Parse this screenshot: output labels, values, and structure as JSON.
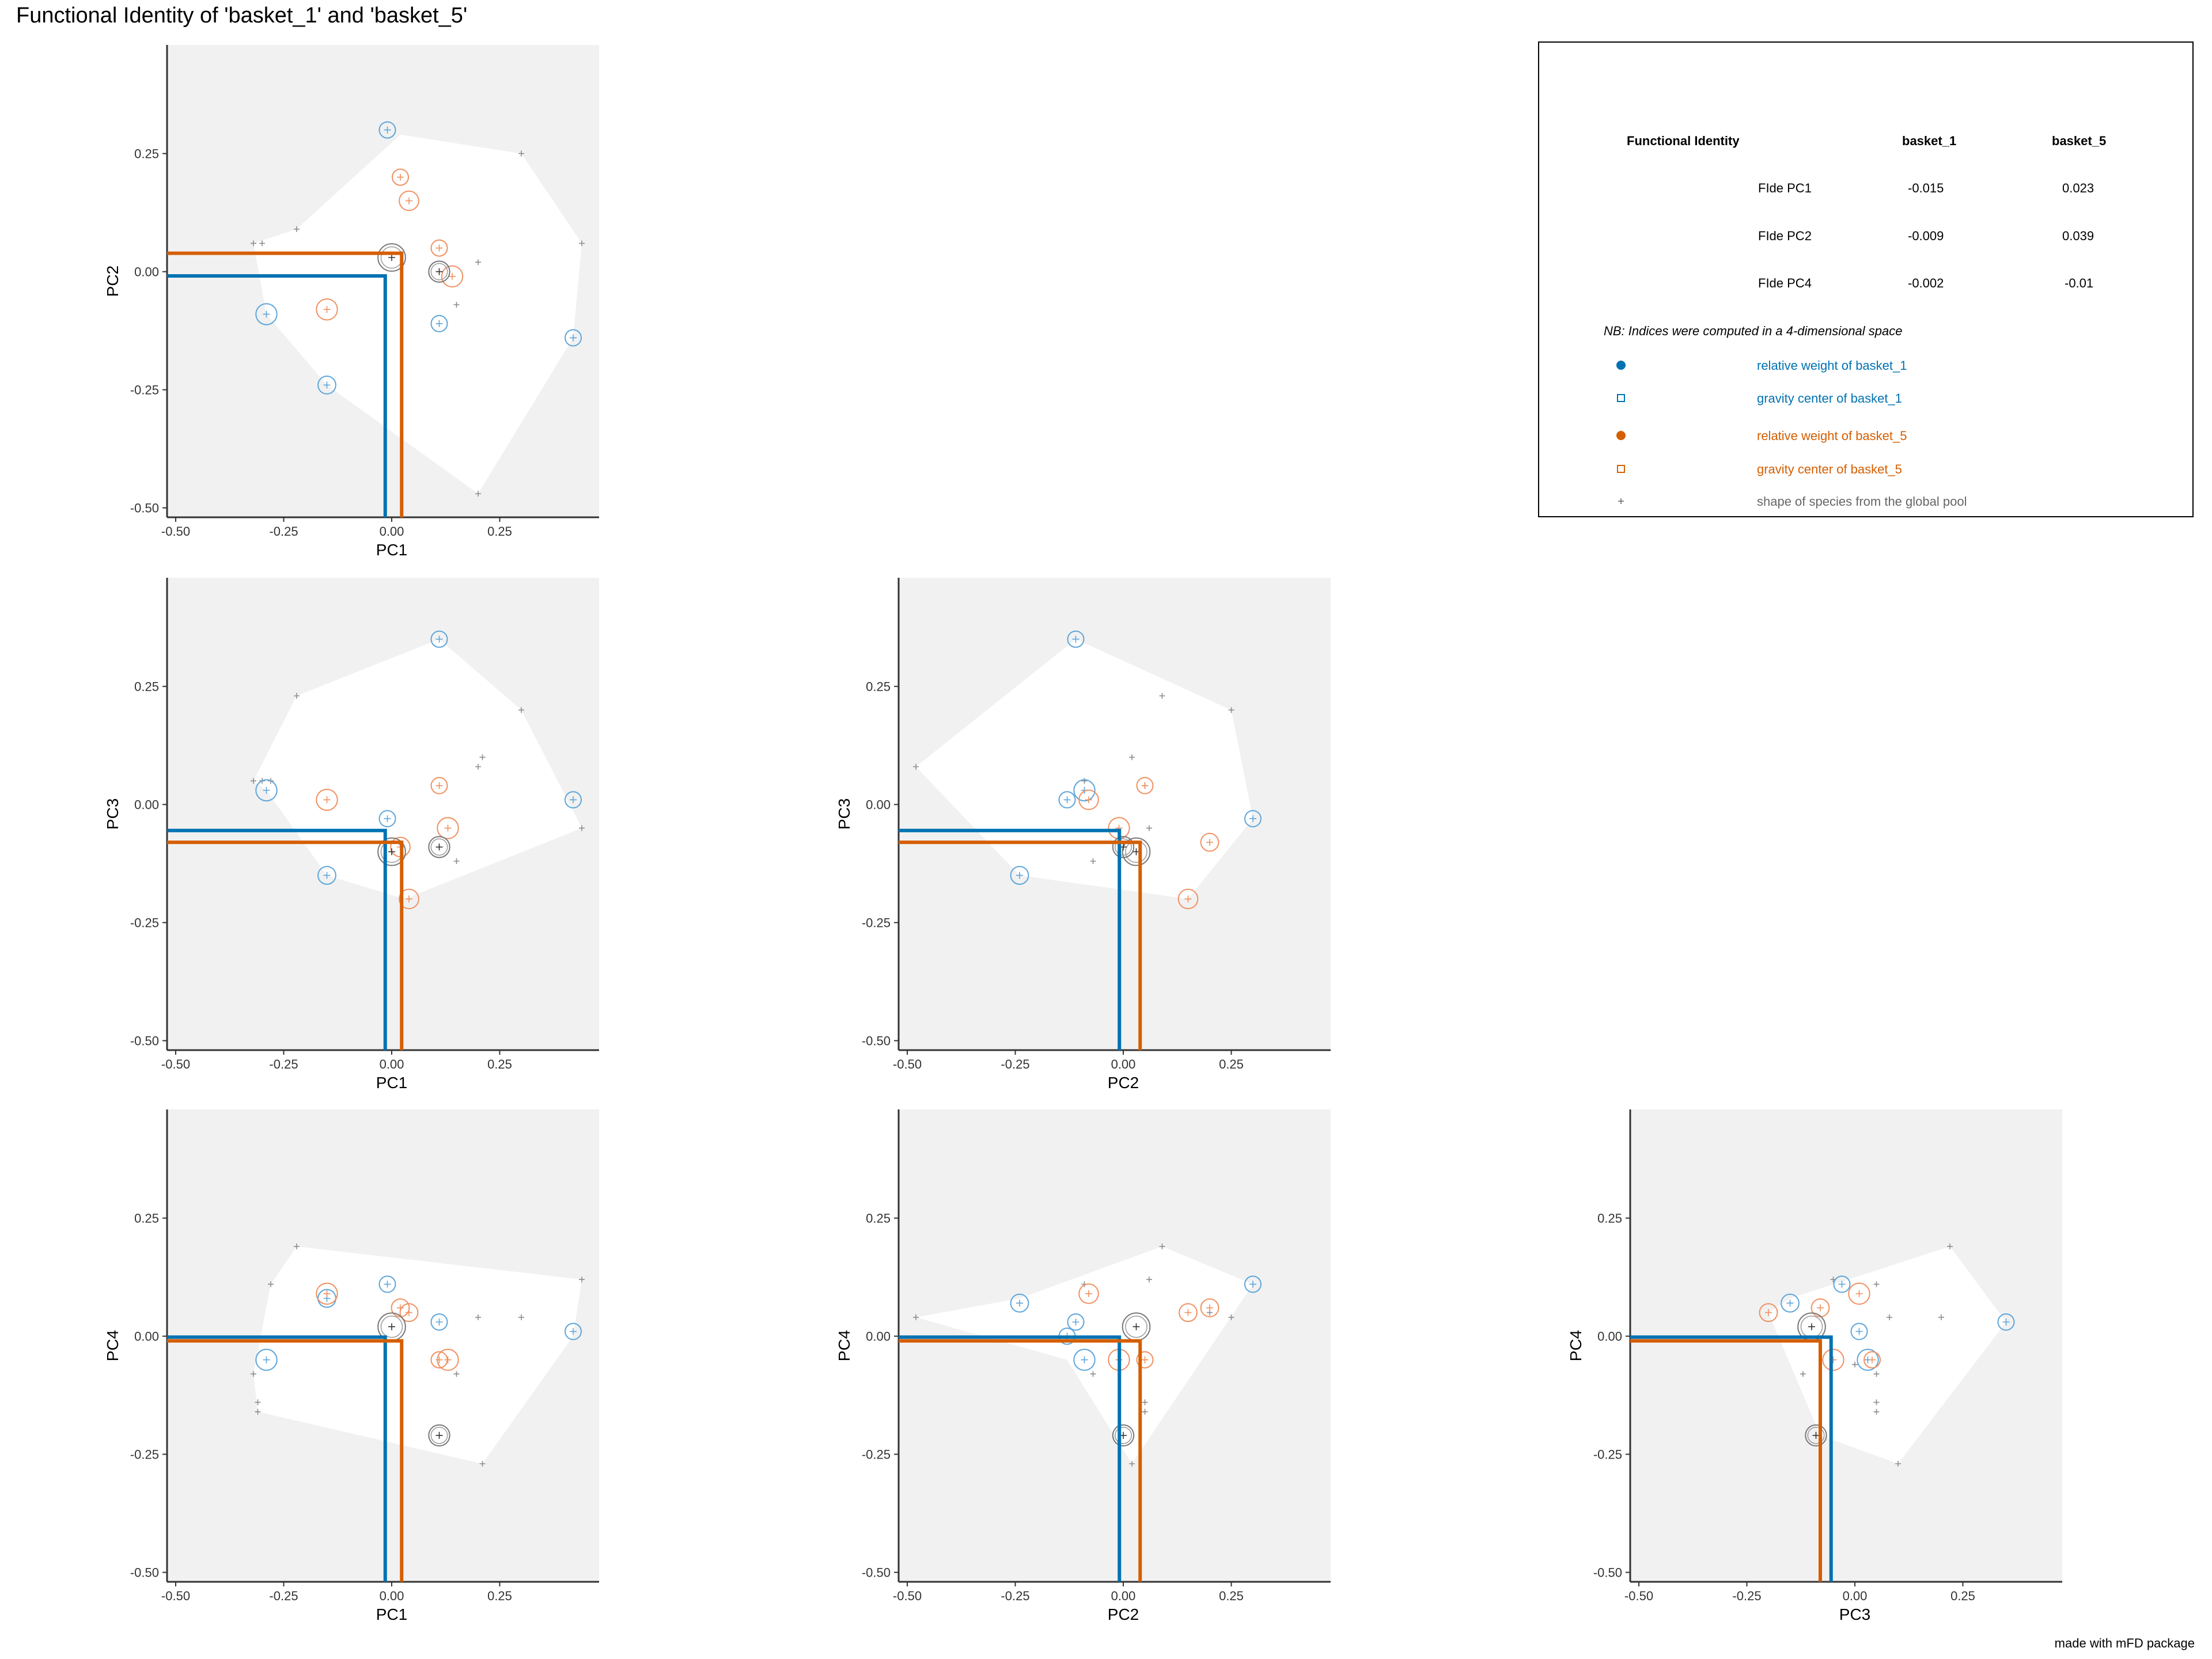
{
  "title": "Functional Identity of 'basket_1' and 'basket_5'",
  "credit": "made with mFD package",
  "colors": {
    "basket_1": "#0072B2",
    "basket_1_light": "#5DA5DA",
    "basket_5": "#D55E00",
    "basket_5_light": "#F09060",
    "pool": "#8C8C8C",
    "common": "#333333",
    "panel_bg": "#F1F1F1",
    "hull": "#FFFFFF"
  },
  "legend": {
    "header": [
      "Functional Identity",
      "basket_1",
      "basket_5"
    ],
    "rows": [
      {
        "label": "FIde PC1",
        "basket_1": "-0.015",
        "basket_5": "0.023"
      },
      {
        "label": "FIde PC2",
        "basket_1": "-0.009",
        "basket_5": "0.039"
      },
      {
        "label": "FIde PC4",
        "basket_1": "-0.002",
        "basket_5": "-0.01"
      }
    ],
    "note": "NB: Indices were computed in a 4-dimensional space",
    "items": [
      {
        "label": "relative weight of basket_1",
        "symbol": "filled-circle",
        "color": "#0072B2"
      },
      {
        "label": "gravity center of basket_1",
        "symbol": "open-square",
        "color": "#0072B2"
      },
      {
        "label": "relative weight of basket_5",
        "symbol": "filled-circle",
        "color": "#D55E00"
      },
      {
        "label": "gravity center of basket_5",
        "symbol": "open-square",
        "color": "#D55E00"
      },
      {
        "label": "shape of species from the global pool",
        "symbol": "cross",
        "color": "#666666"
      }
    ]
  },
  "chart_data": [
    {
      "type": "scatter",
      "xlabel": "PC1",
      "ylabel": "PC2",
      "xlim": [
        -0.52,
        0.48
      ],
      "ylim": [
        -0.52,
        0.48
      ],
      "xticks": [
        "-0.50",
        "-0.25",
        "0.00",
        "0.25"
      ],
      "yticks": [
        "-0.50",
        "-0.25",
        "0.00",
        "0.25"
      ],
      "hull": [
        [
          -0.32,
          0.06
        ],
        [
          -0.22,
          0.09
        ],
        [
          0.02,
          0.29
        ],
        [
          0.3,
          0.25
        ],
        [
          0.44,
          0.06
        ],
        [
          0.42,
          -0.14
        ],
        [
          0.2,
          -0.47
        ],
        [
          -0.15,
          -0.24
        ],
        [
          -0.29,
          -0.09
        ]
      ],
      "pool": [
        [
          -0.32,
          0.06
        ],
        [
          -0.3,
          0.06
        ],
        [
          -0.22,
          0.09
        ],
        [
          0.3,
          0.25
        ],
        [
          0.44,
          0.06
        ],
        [
          0.2,
          0.02
        ],
        [
          0.15,
          -0.07
        ],
        [
          0.2,
          -0.47
        ]
      ],
      "basket_1": [
        {
          "x": -0.01,
          "y": 0.3,
          "r": 1
        },
        {
          "x": -0.29,
          "y": -0.09,
          "r": 1.3
        },
        {
          "x": -0.15,
          "y": -0.24,
          "r": 1.1
        },
        {
          "x": 0.11,
          "y": -0.11,
          "r": 1
        },
        {
          "x": 0.42,
          "y": -0.14,
          "r": 1
        }
      ],
      "basket_5": [
        {
          "x": 0.02,
          "y": 0.2,
          "r": 1
        },
        {
          "x": 0.04,
          "y": 0.15,
          "r": 1.2
        },
        {
          "x": 0.11,
          "y": 0.05,
          "r": 1
        },
        {
          "x": 0.14,
          "y": -0.01,
          "r": 1.3
        },
        {
          "x": -0.15,
          "y": -0.08,
          "r": 1.3
        }
      ],
      "common": [
        {
          "x": 0.0,
          "y": 0.03,
          "r": 1.7
        },
        {
          "x": 0.11,
          "y": 0.0,
          "r": 1.3
        }
      ],
      "fide_b1": [
        -0.015,
        -0.009
      ],
      "fide_b5": [
        0.023,
        0.039
      ]
    },
    {
      "type": "scatter",
      "xlabel": "PC1",
      "ylabel": "PC3",
      "xlim": [
        -0.52,
        0.48
      ],
      "ylim": [
        -0.52,
        0.48
      ],
      "xticks": [
        "-0.50",
        "-0.25",
        "0.00",
        "0.25"
      ],
      "yticks": [
        "-0.50",
        "-0.25",
        "0.00",
        "0.25"
      ],
      "hull": [
        [
          -0.32,
          0.05
        ],
        [
          -0.22,
          0.23
        ],
        [
          0.11,
          0.35
        ],
        [
          0.3,
          0.2
        ],
        [
          0.44,
          -0.05
        ],
        [
          0.03,
          -0.2
        ],
        [
          -0.15,
          -0.15
        ],
        [
          -0.29,
          0.03
        ]
      ],
      "pool": [
        [
          -0.32,
          0.05
        ],
        [
          -0.3,
          0.05
        ],
        [
          -0.28,
          0.05
        ],
        [
          -0.22,
          0.23
        ],
        [
          0.3,
          0.2
        ],
        [
          0.21,
          0.1
        ],
        [
          0.2,
          0.08
        ],
        [
          0.44,
          -0.05
        ],
        [
          0.15,
          -0.12
        ]
      ],
      "basket_1": [
        {
          "x": 0.11,
          "y": 0.35,
          "r": 1
        },
        {
          "x": -0.29,
          "y": 0.03,
          "r": 1.3
        },
        {
          "x": -0.15,
          "y": -0.15,
          "r": 1.1
        },
        {
          "x": -0.01,
          "y": -0.03,
          "r": 1
        },
        {
          "x": 0.42,
          "y": 0.01,
          "r": 1
        }
      ],
      "basket_5": [
        {
          "x": -0.15,
          "y": 0.01,
          "r": 1.3
        },
        {
          "x": 0.11,
          "y": 0.04,
          "r": 1
        },
        {
          "x": 0.13,
          "y": -0.05,
          "r": 1.3
        },
        {
          "x": 0.02,
          "y": -0.09,
          "r": 1.2
        },
        {
          "x": 0.04,
          "y": -0.2,
          "r": 1.2
        }
      ],
      "common": [
        {
          "x": 0.0,
          "y": -0.1,
          "r": 1.7
        },
        {
          "x": 0.11,
          "y": -0.09,
          "r": 1.3
        }
      ],
      "fide_b1": [
        -0.015,
        -0.055
      ],
      "fide_b5": [
        0.023,
        -0.08
      ]
    },
    {
      "type": "scatter",
      "xlabel": "PC2",
      "ylabel": "PC3",
      "xlim": [
        -0.52,
        0.48
      ],
      "ylim": [
        -0.52,
        0.48
      ],
      "xticks": [
        "-0.50",
        "-0.25",
        "0.00",
        "0.25"
      ],
      "yticks": [
        "-0.50",
        "-0.25",
        "0.00",
        "0.25"
      ],
      "hull": [
        [
          -0.48,
          0.08
        ],
        [
          -0.11,
          0.35
        ],
        [
          0.25,
          0.2
        ],
        [
          0.3,
          -0.03
        ],
        [
          0.15,
          -0.2
        ],
        [
          -0.24,
          -0.15
        ]
      ],
      "pool": [
        [
          -0.48,
          0.08
        ],
        [
          0.09,
          0.23
        ],
        [
          0.25,
          0.2
        ],
        [
          -0.09,
          0.05
        ],
        [
          0.02,
          0.1
        ],
        [
          0.05,
          0.04
        ],
        [
          0.06,
          -0.05
        ],
        [
          -0.07,
          -0.12
        ]
      ],
      "basket_1": [
        {
          "x": -0.11,
          "y": 0.35,
          "r": 1
        },
        {
          "x": -0.09,
          "y": 0.03,
          "r": 1.3
        },
        {
          "x": -0.13,
          "y": 0.01,
          "r": 1
        },
        {
          "x": -0.24,
          "y": -0.15,
          "r": 1.1
        },
        {
          "x": 0.3,
          "y": -0.03,
          "r": 1
        }
      ],
      "basket_5": [
        {
          "x": -0.08,
          "y": 0.01,
          "r": 1.2
        },
        {
          "x": 0.05,
          "y": 0.04,
          "r": 1
        },
        {
          "x": -0.01,
          "y": -0.05,
          "r": 1.3
        },
        {
          "x": 0.2,
          "y": -0.08,
          "r": 1.1
        },
        {
          "x": 0.15,
          "y": -0.2,
          "r": 1.2
        }
      ],
      "common": [
        {
          "x": 0.03,
          "y": -0.1,
          "r": 1.7
        },
        {
          "x": 0.0,
          "y": -0.09,
          "r": 1.3
        }
      ],
      "fide_b1": [
        -0.009,
        -0.055
      ],
      "fide_b5": [
        0.039,
        -0.08
      ]
    },
    {
      "type": "scatter",
      "xlabel": "PC1",
      "ylabel": "PC4",
      "xlim": [
        -0.52,
        0.48
      ],
      "ylim": [
        -0.52,
        0.48
      ],
      "xticks": [
        "-0.50",
        "-0.25",
        "0.00",
        "0.25"
      ],
      "yticks": [
        "-0.50",
        "-0.25",
        "0.00",
        "0.25"
      ],
      "hull": [
        [
          -0.32,
          -0.08
        ],
        [
          -0.28,
          0.11
        ],
        [
          -0.22,
          0.19
        ],
        [
          0.44,
          0.12
        ],
        [
          0.42,
          0.0
        ],
        [
          0.21,
          -0.27
        ],
        [
          -0.31,
          -0.16
        ]
      ],
      "pool": [
        [
          -0.32,
          -0.08
        ],
        [
          -0.28,
          0.11
        ],
        [
          -0.22,
          0.19
        ],
        [
          0.2,
          0.04
        ],
        [
          0.3,
          0.04
        ],
        [
          0.44,
          0.12
        ],
        [
          0.15,
          -0.08
        ],
        [
          -0.31,
          -0.14
        ],
        [
          -0.31,
          -0.16
        ],
        [
          0.21,
          -0.27
        ]
      ],
      "basket_1": [
        {
          "x": -0.01,
          "y": 0.11,
          "r": 1
        },
        {
          "x": -0.15,
          "y": 0.08,
          "r": 1.1
        },
        {
          "x": 0.11,
          "y": 0.03,
          "r": 1
        },
        {
          "x": -0.29,
          "y": -0.05,
          "r": 1.3
        },
        {
          "x": 0.42,
          "y": 0.01,
          "r": 1
        }
      ],
      "basket_5": [
        {
          "x": -0.15,
          "y": 0.09,
          "r": 1.3
        },
        {
          "x": 0.02,
          "y": 0.06,
          "r": 1.1
        },
        {
          "x": 0.04,
          "y": 0.05,
          "r": 1.1
        },
        {
          "x": 0.11,
          "y": -0.05,
          "r": 1
        },
        {
          "x": 0.13,
          "y": -0.05,
          "r": 1.3
        }
      ],
      "common": [
        {
          "x": 0.0,
          "y": 0.02,
          "r": 1.7
        },
        {
          "x": 0.11,
          "y": -0.21,
          "r": 1.3
        }
      ],
      "fide_b1": [
        -0.015,
        -0.002
      ],
      "fide_b5": [
        0.023,
        -0.01
      ]
    },
    {
      "type": "scatter",
      "xlabel": "PC2",
      "ylabel": "PC4",
      "xlim": [
        -0.52,
        0.48
      ],
      "ylim": [
        -0.52,
        0.48
      ],
      "xticks": [
        "-0.50",
        "-0.25",
        "0.00",
        "0.25"
      ],
      "yticks": [
        "-0.50",
        "-0.25",
        "0.00",
        "0.25"
      ],
      "hull": [
        [
          -0.48,
          0.04
        ],
        [
          -0.24,
          0.08
        ],
        [
          0.09,
          0.19
        ],
        [
          0.3,
          0.11
        ],
        [
          0.02,
          -0.27
        ],
        [
          -0.13,
          -0.05
        ]
      ],
      "pool": [
        [
          -0.48,
          0.04
        ],
        [
          -0.09,
          0.11
        ],
        [
          0.06,
          0.12
        ],
        [
          0.09,
          0.19
        ],
        [
          0.2,
          0.05
        ],
        [
          0.25,
          0.04
        ],
        [
          -0.07,
          -0.08
        ],
        [
          0.02,
          -0.27
        ],
        [
          0.05,
          -0.14
        ],
        [
          0.05,
          -0.16
        ]
      ],
      "basket_1": [
        {
          "x": -0.24,
          "y": 0.07,
          "r": 1.1
        },
        {
          "x": -0.11,
          "y": 0.03,
          "r": 1
        },
        {
          "x": -0.13,
          "y": 0.0,
          "r": 1
        },
        {
          "x": -0.09,
          "y": -0.05,
          "r": 1.3
        },
        {
          "x": 0.3,
          "y": 0.11,
          "r": 1
        }
      ],
      "basket_5": [
        {
          "x": -0.08,
          "y": 0.09,
          "r": 1.2
        },
        {
          "x": -0.01,
          "y": -0.05,
          "r": 1.3
        },
        {
          "x": 0.05,
          "y": -0.05,
          "r": 1
        },
        {
          "x": 0.15,
          "y": 0.05,
          "r": 1.1
        },
        {
          "x": 0.2,
          "y": 0.06,
          "r": 1.1
        }
      ],
      "common": [
        {
          "x": 0.03,
          "y": 0.02,
          "r": 1.7
        },
        {
          "x": 0.0,
          "y": -0.21,
          "r": 1.3
        }
      ],
      "fide_b1": [
        -0.009,
        -0.002
      ],
      "fide_b5": [
        0.039,
        -0.01
      ]
    },
    {
      "type": "scatter",
      "xlabel": "PC3",
      "ylabel": "PC4",
      "xlim": [
        -0.52,
        0.48
      ],
      "ylim": [
        -0.52,
        0.48
      ],
      "xticks": [
        "-0.50",
        "-0.25",
        "0.00",
        "0.25"
      ],
      "yticks": [
        "-0.50",
        "-0.25",
        "0.00",
        "0.25"
      ],
      "hull": [
        [
          -0.2,
          0.05
        ],
        [
          -0.15,
          0.08
        ],
        [
          0.22,
          0.19
        ],
        [
          0.35,
          0.03
        ],
        [
          0.1,
          -0.27
        ],
        [
          -0.08,
          -0.21
        ]
      ],
      "pool": [
        [
          -0.05,
          0.12
        ],
        [
          0.05,
          0.11
        ],
        [
          0.08,
          0.04
        ],
        [
          0.2,
          0.04
        ],
        [
          0.22,
          0.19
        ],
        [
          0.0,
          -0.06
        ],
        [
          0.05,
          -0.08
        ],
        [
          -0.12,
          -0.08
        ],
        [
          0.05,
          -0.14
        ],
        [
          0.05,
          -0.16
        ],
        [
          0.1,
          -0.27
        ]
      ],
      "basket_1": [
        {
          "x": -0.15,
          "y": 0.07,
          "r": 1.1
        },
        {
          "x": -0.03,
          "y": 0.11,
          "r": 1
        },
        {
          "x": 0.01,
          "y": 0.01,
          "r": 1
        },
        {
          "x": 0.03,
          "y": -0.05,
          "r": 1.3
        },
        {
          "x": 0.35,
          "y": 0.03,
          "r": 1
        }
      ],
      "basket_5": [
        {
          "x": -0.2,
          "y": 0.05,
          "r": 1.1
        },
        {
          "x": -0.08,
          "y": 0.06,
          "r": 1.1
        },
        {
          "x": 0.01,
          "y": 0.09,
          "r": 1.3
        },
        {
          "x": -0.05,
          "y": -0.05,
          "r": 1.3
        },
        {
          "x": 0.04,
          "y": -0.05,
          "r": 1
        }
      ],
      "common": [
        {
          "x": -0.1,
          "y": 0.02,
          "r": 1.7
        },
        {
          "x": -0.09,
          "y": -0.21,
          "r": 1.3
        }
      ],
      "fide_b1": [
        -0.055,
        -0.002
      ],
      "fide_b5": [
        -0.08,
        -0.01
      ]
    }
  ]
}
